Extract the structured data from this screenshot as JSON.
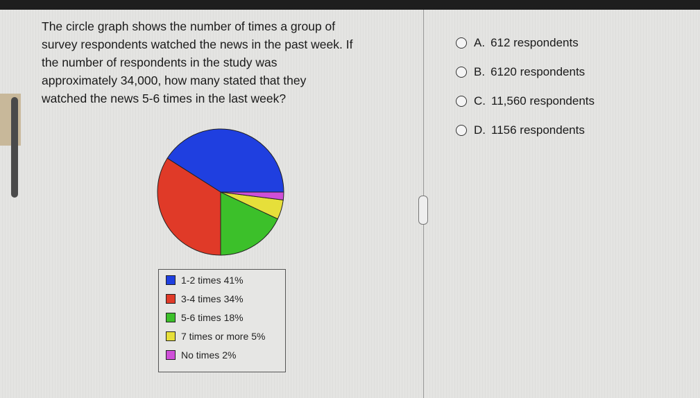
{
  "question_lines": [
    "The circle graph shows the number of times a group of",
    "survey respondents watched the news in the past week. If",
    "the number of respondents in the study was",
    "approximately 34,000, how many stated that they",
    "watched the news 5-6 times in the last week?"
  ],
  "options": [
    {
      "letter": "A.",
      "text": "612 respondents"
    },
    {
      "letter": "B.",
      "text": "6120 respondents"
    },
    {
      "letter": "C.",
      "text": "11,560 respondents"
    },
    {
      "letter": "D.",
      "text": "1156 respondents"
    }
  ],
  "chart_data": {
    "type": "pie",
    "categories": [
      "1-2 times",
      "3-4 times",
      "5-6 times",
      "7 times or more",
      "No times"
    ],
    "values": [
      41,
      34,
      18,
      5,
      2
    ],
    "value_labels": [
      "41%",
      "34%",
      "18%",
      "5%",
      "2%"
    ],
    "colors": [
      "#1f3fe0",
      "#e03a28",
      "#3cc02a",
      "#e6df3a",
      "#cf4fd8"
    ]
  }
}
